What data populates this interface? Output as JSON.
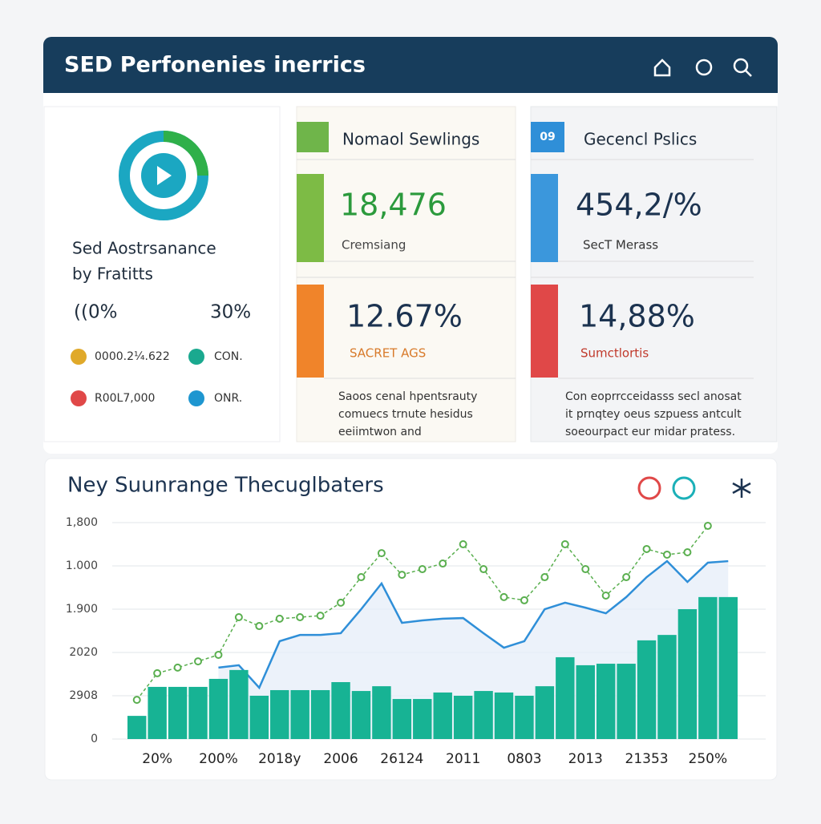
{
  "header": {
    "title": "SED Perfonenies inerrics"
  },
  "left_card": {
    "title_lines": [
      "Sed Aostrsanance",
      "by Fratitts"
    ],
    "stat_left": "((0%",
    "stat_right": "30%",
    "legend": [
      "0000.2¼.622",
      "CON.",
      "R00L7,000",
      "ONR."
    ]
  },
  "middle_card": {
    "title": "Nomaol Sewlings",
    "metric_1": {
      "value": "18,476",
      "label": "Cremsiang"
    },
    "metric_2": {
      "value": "12.67%",
      "label": "SACRET AGS"
    },
    "text_lines": [
      "Saoos cenal hpentsrauty",
      "comuecs trnute hesidus",
      "eeiimtwon and"
    ]
  },
  "right_card": {
    "badge": "09",
    "title": "Gecencl Pslics",
    "metric_1": {
      "value": "454,2/%",
      "label": "SecT Merass"
    },
    "metric_2": {
      "value": "14,88%",
      "label": "Sumctlortis"
    },
    "text_lines": [
      "Con eoprrcceidasss secl anosat",
      "it prnqtey oeus szpuess antcult",
      "soeourpact eur midar pratess."
    ]
  },
  "chart_data": {
    "type": "bar",
    "title": "Ney Suunrange Thecuglbaters",
    "categories": [
      null,
      "20%",
      null,
      null,
      "200%",
      null,
      null,
      "2018y",
      null,
      null,
      "2006",
      null,
      null,
      "26124",
      null,
      null,
      "2011",
      null,
      null,
      "0803",
      null,
      null,
      "2013",
      null,
      null,
      "21353",
      null,
      null,
      "250%",
      null
    ],
    "ylim": [
      0,
      1000
    ],
    "yticks": [
      0,
      {
        "value": 200,
        "label": "2908"
      },
      {
        "value": 400,
        "label": "2020"
      },
      {
        "value": 600,
        "label": "1.900"
      },
      {
        "value": 800,
        "label": "1.000"
      },
      {
        "value": 1000,
        "label": "1,800"
      }
    ],
    "grid": true,
    "series": [
      {
        "type": "bar",
        "color": "#17b394",
        "values": [
          107,
          241,
          241,
          241,
          278,
          319,
          200,
          226,
          226,
          226,
          263,
          222,
          244,
          185,
          185,
          215,
          200,
          222,
          215,
          200,
          244,
          378,
          341,
          348,
          348,
          456,
          481,
          600,
          656,
          656
        ]
      },
      {
        "type": "area",
        "color": "#2f8fd8",
        "fill": "#e6edf8",
        "values": [
          null,
          null,
          null,
          null,
          330,
          341,
          237,
          452,
          481,
          481,
          489,
          600,
          719,
          537,
          548,
          556,
          559,
          489,
          422,
          452,
          600,
          630,
          607,
          581,
          656,
          748,
          822,
          726,
          815,
          822
        ]
      },
      {
        "type": "dashed-line",
        "color": "#5aaf4f",
        "values": [
          181,
          304,
          330,
          359,
          389,
          563,
          522,
          556,
          563,
          570,
          630,
          748,
          859,
          759,
          785,
          811,
          900,
          785,
          656,
          641,
          748,
          900,
          785,
          663,
          748,
          878,
          852,
          863,
          985,
          null
        ]
      }
    ]
  }
}
